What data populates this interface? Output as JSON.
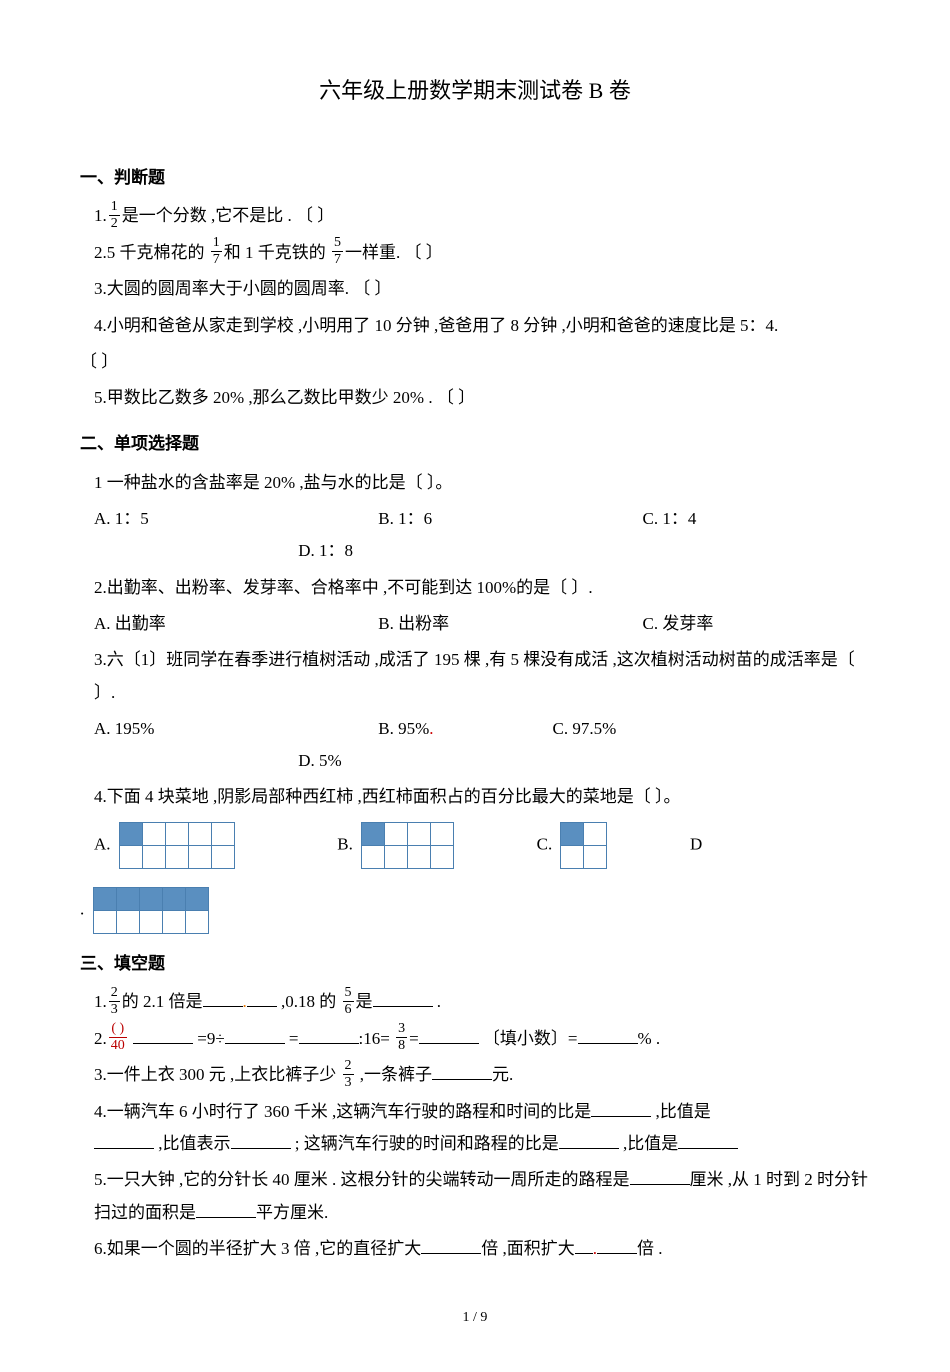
{
  "title": "六年级上册数学期末测试卷 B 卷",
  "sec1": {
    "heading": "一、判断题"
  },
  "s1q1": {
    "pre": "1.",
    "f": {
      "n": "1",
      "d": "2"
    },
    "post": "是一个分数 ,它不是比 .   〔   〕"
  },
  "s1q2": {
    "pre": "2.5 千克棉花的 ",
    "f1": {
      "n": "1",
      "d": "7"
    },
    "mid": "和 1 千克铁的 ",
    "f2": {
      "n": "5",
      "d": "7"
    },
    "post": "一样重.     〔   〕"
  },
  "s1q3": "3.大圆的圆周率大于小圆的圆周率.     〔   〕",
  "s1q4": "4.小明和爸爸从家走到学校 ,小明用了 10 分钟 ,爸爸用了 8 分钟 ,小明和爸爸的速度比是 5：4.",
  "s1q4b": "〔   〕",
  "s1q5": "5.甲数比乙数多 20% ,那么乙数比甲数少 20% .     〔   〕",
  "sec2": {
    "heading": "二、单项选择题"
  },
  "s2q1": "1 一种盐水的含盐率是 20% ,盐与水的比是〔   〕。",
  "s2q1opt": {
    "a": "A. 1：5",
    "b": "B. 1：6",
    "c": "C. 1：4",
    "d": "D. 1：8"
  },
  "s2q2": "2.出勤率、出粉率、发芽率、合格率中 ,不可能到达 100%的是〔     〕.",
  "s2q2opt": {
    "a": "A. 出勤率",
    "b": "B. 出粉率",
    "c": "C. 发芽率"
  },
  "s2q3": "3.六〔1〕班同学在春季进行植树活动 ,成活了 195 棵 ,有 5 棵没有成活 ,这次植树活动树苗的成活率是〔     〕.",
  "s2q3opt": {
    "a": "A. 195%",
    "b": "B. 95%",
    "c": "C. 97.5%",
    "d": "D. 5%"
  },
  "s2q4": "4.下面 4 块菜地 ,阴影局部种西红柿 ,西红柿面积占的百分比最大的菜地是〔   〕。",
  "s2q4opt": {
    "a": "A.",
    "b": "B.",
    "c": "C.",
    "d": "D"
  },
  "s2q4d": ".",
  "gridA": {
    "rows": 2,
    "cols": 5,
    "fill": [
      [
        0,
        0
      ]
    ]
  },
  "gridB": {
    "rows": 2,
    "cols": 4,
    "fill": [
      [
        0,
        0
      ]
    ]
  },
  "gridC": {
    "rows": 2,
    "cols": 2,
    "fill": [
      [
        0,
        0
      ]
    ]
  },
  "gridD": {
    "rows": 2,
    "cols": 5,
    "fill": [
      [
        0,
        0
      ],
      [
        0,
        1
      ],
      [
        0,
        2
      ],
      [
        0,
        3
      ],
      [
        0,
        4
      ]
    ]
  },
  "sec3": {
    "heading": "三、填空题"
  },
  "s3q1": {
    "pre": "1.",
    "f1": {
      "n": "2",
      "d": "3"
    },
    "mid1": "的 2.1 倍是",
    "mid2": " ,0.18 的 ",
    "f2": {
      "n": "5",
      "d": "6"
    },
    "mid3": "是",
    "post": " ."
  },
  "s3q2": {
    "pre": "2.",
    "f1": {
      "n": "( )",
      "d": "40"
    },
    "mid1": "   =9÷",
    "mid2": "   =",
    "mid3": ":16= ",
    "f2": {
      "n": "3",
      "d": "8"
    },
    "mid4": "=",
    "mid5": " 〔填小数〕=",
    "post": "% ."
  },
  "s3q3": {
    "pre": "3.一件上衣 300 元 ,上衣比裤子少 ",
    "f": {
      "n": "2",
      "d": "3"
    },
    "mid": " ,一条裤子",
    "post": "元."
  },
  "s3q4a": "4.一辆汽车 6 小时行了 360 千米 ,这辆汽车行驶的路程和时间的比是",
  "s3q4b": " ,比值是",
  "s3q4c": " ,比值表示",
  "s3q4d": " ; 这辆汽车行驶的时间和路程的比是",
  "s3q4e": " ,比值是",
  "s3q5a": "5.一只大钟 ,它的分针长 40 厘米 . 这根分针的尖端转动一周所走的路程是",
  "s3q5b": "厘米 ,从 1 时到 2 时分针扫过的面积是",
  "s3q5c": "平方厘米.",
  "s3q6a": "6.如果一个圆的半径扩大 3 倍 ,它的直径扩大",
  "s3q6b": "倍 ,面积扩大",
  "s3q6c": "倍 .",
  "footer": "1 / 9"
}
